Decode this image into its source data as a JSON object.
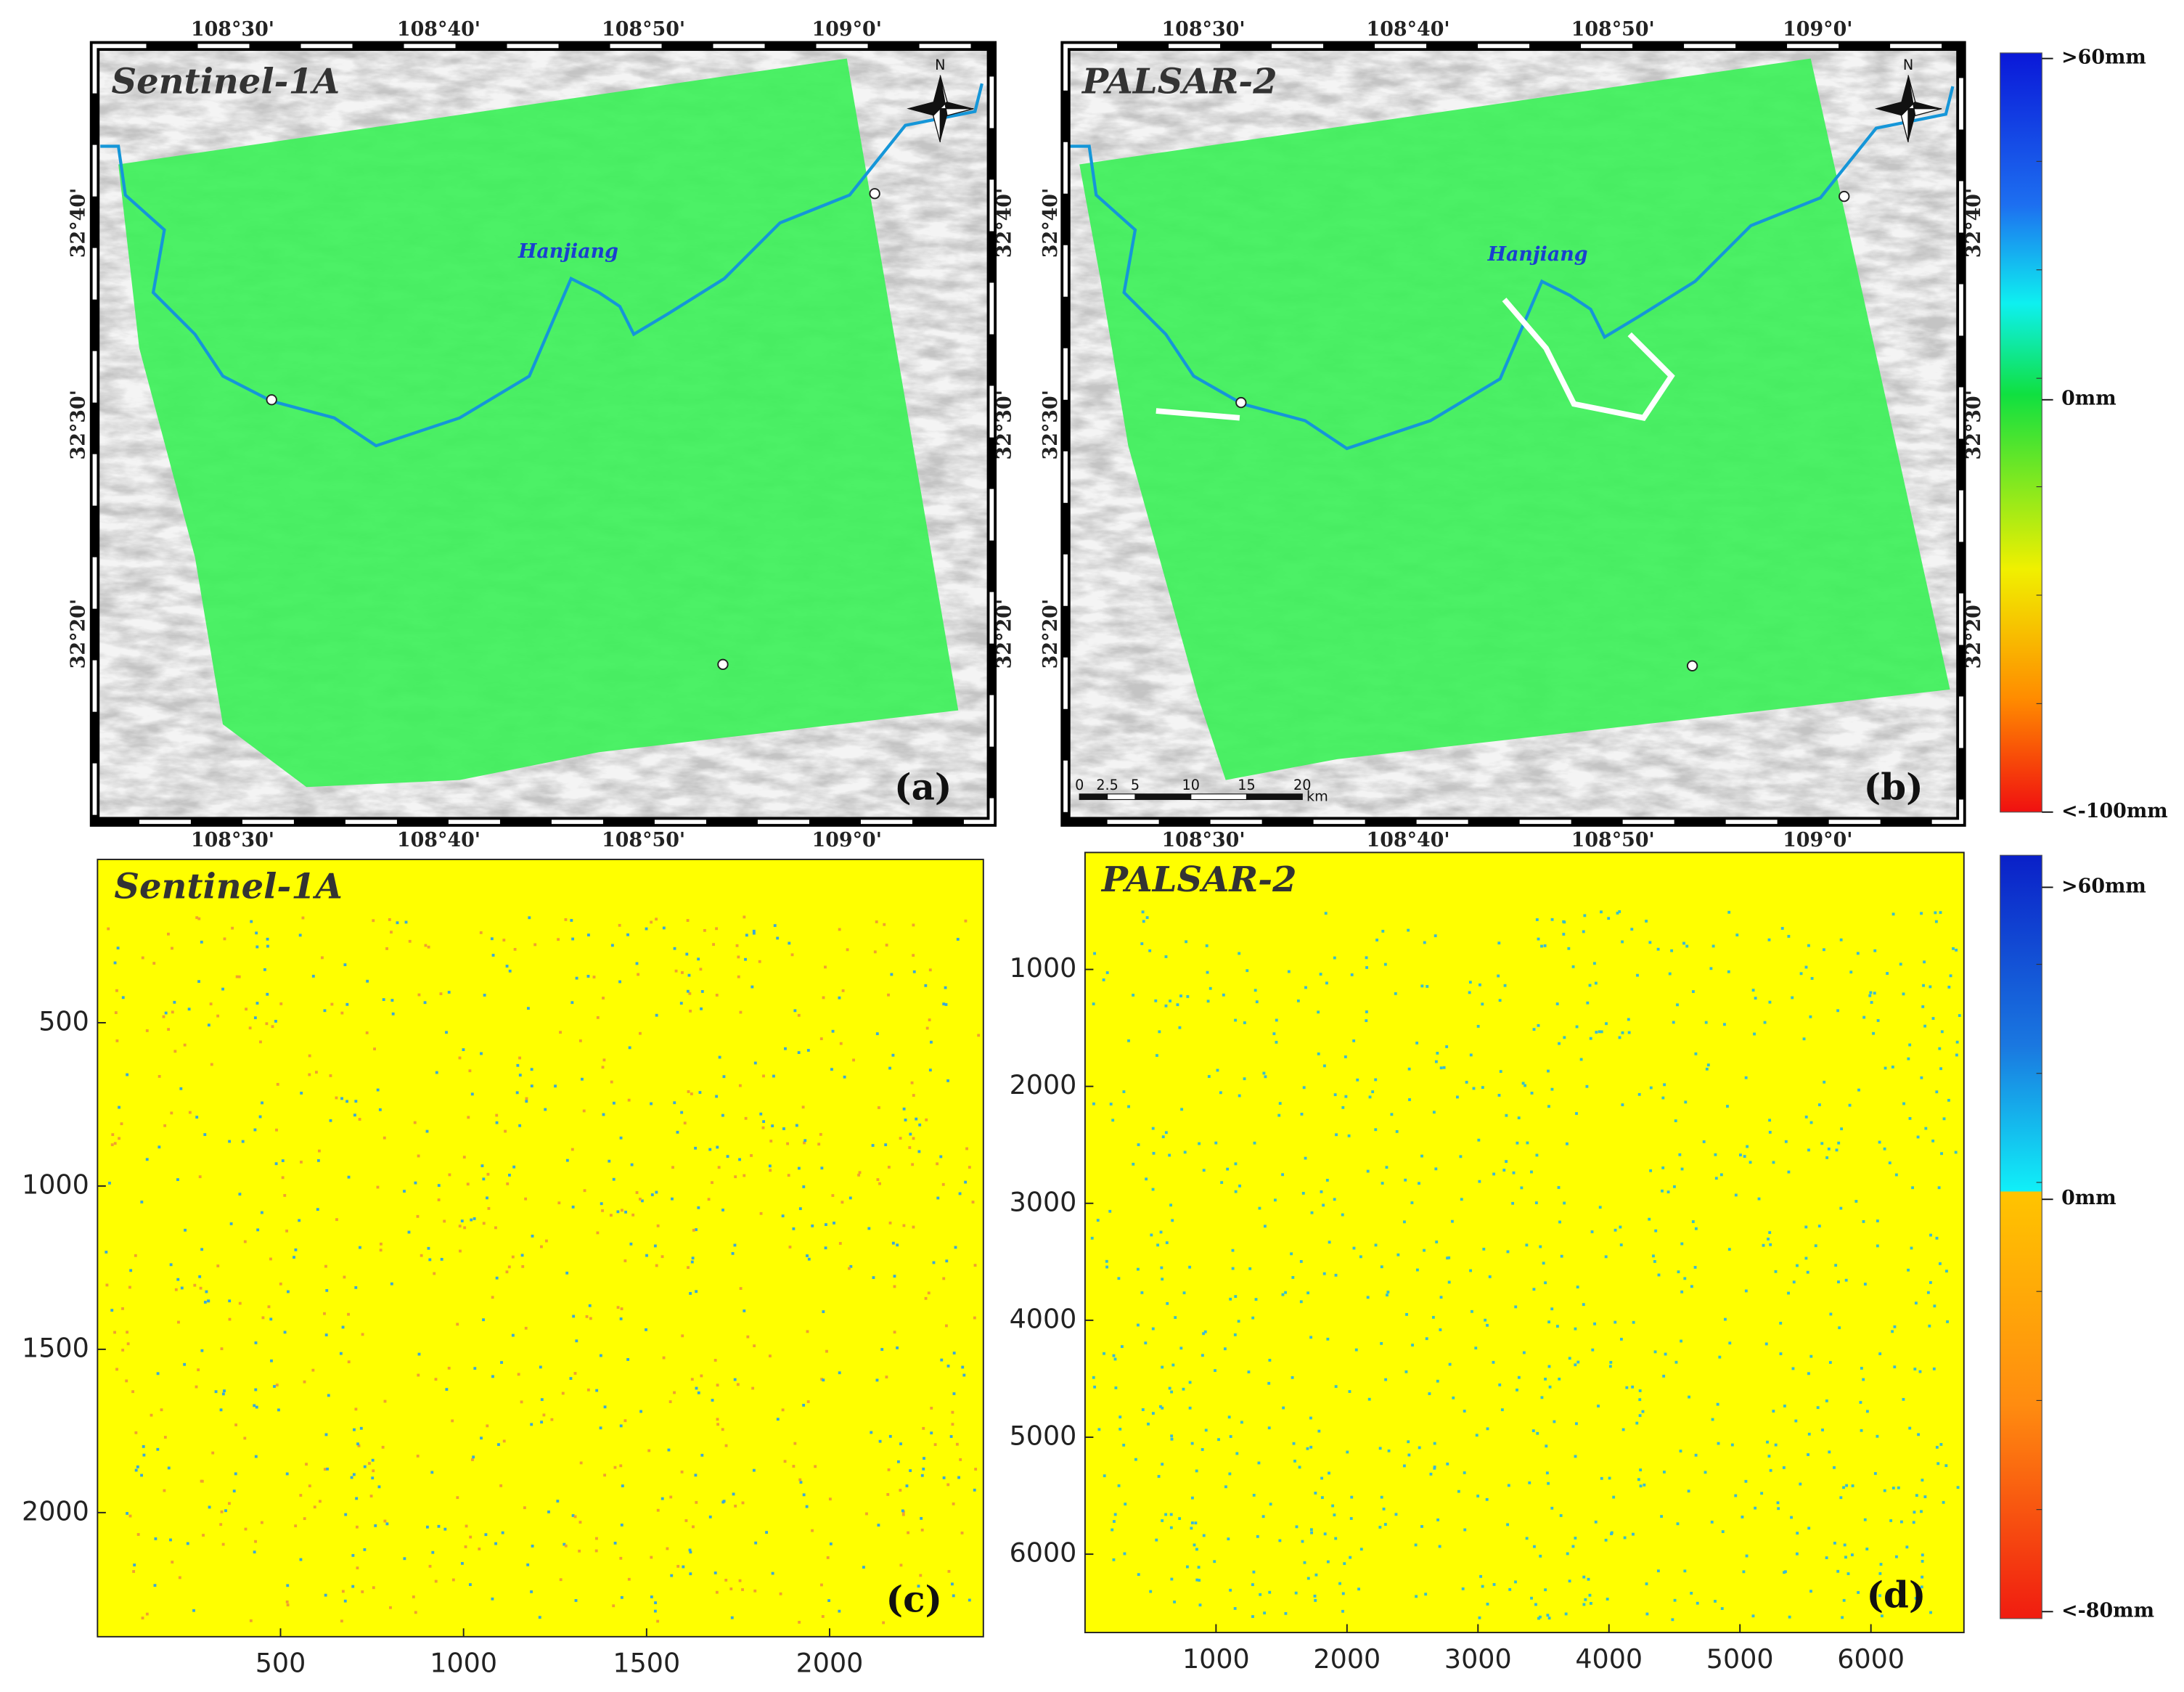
{
  "panels": [
    {
      "label": "(a)",
      "title": "Sentinel-1A",
      "top_ticks": [
        "108°30'",
        "108°40'",
        "108°50'",
        "109°0'"
      ],
      "bottom_ticks": [
        "108°30'",
        "108°40'",
        "108°50'",
        "109°0'"
      ],
      "left_ticks": [
        "32°40'",
        "32°30'",
        "32°20'"
      ],
      "right_ticks": [
        "32°40'",
        "32°30'",
        "32°20'"
      ],
      "river": "Hanjiang",
      "north": "N"
    },
    {
      "label": "(b)",
      "title": "PALSAR-2",
      "top_ticks": [
        "108°30'",
        "108°40'",
        "108°50'",
        "109°0'"
      ],
      "bottom_ticks": [
        "108°30'",
        "108°40'",
        "108°50'",
        "109°0'"
      ],
      "left_ticks": [
        "32°40'",
        "32°30'",
        "32°20'"
      ],
      "right_ticks": [
        "32°40'",
        "32°30'",
        "32°20'"
      ],
      "river": "Hanjiang",
      "north": "N",
      "scale_bar": {
        "ticks": [
          0,
          2.5,
          5,
          10,
          15,
          20
        ],
        "unit": "km"
      }
    },
    {
      "label": "(c)",
      "title": "Sentinel-1A",
      "xlim": [
        0,
        2420
      ],
      "ylim": [
        0,
        2380
      ],
      "xticks": [
        500,
        1000,
        1500,
        2000
      ],
      "yticks": [
        500,
        1000,
        1500,
        2000
      ]
    },
    {
      "label": "(d)",
      "title": "PALSAR-2",
      "xlim": [
        0,
        6710
      ],
      "ylim": [
        0,
        6670
      ],
      "xticks": [
        1000,
        2000,
        3000,
        4000,
        5000,
        6000
      ],
      "yticks": [
        1000,
        2000,
        3000,
        4000,
        5000,
        6000
      ]
    }
  ],
  "colorbars": [
    {
      "labels": [
        ">60mm",
        "0mm",
        "<-100mm"
      ]
    },
    {
      "labels": [
        ">60mm",
        "0mm",
        "<-80mm"
      ]
    }
  ]
}
